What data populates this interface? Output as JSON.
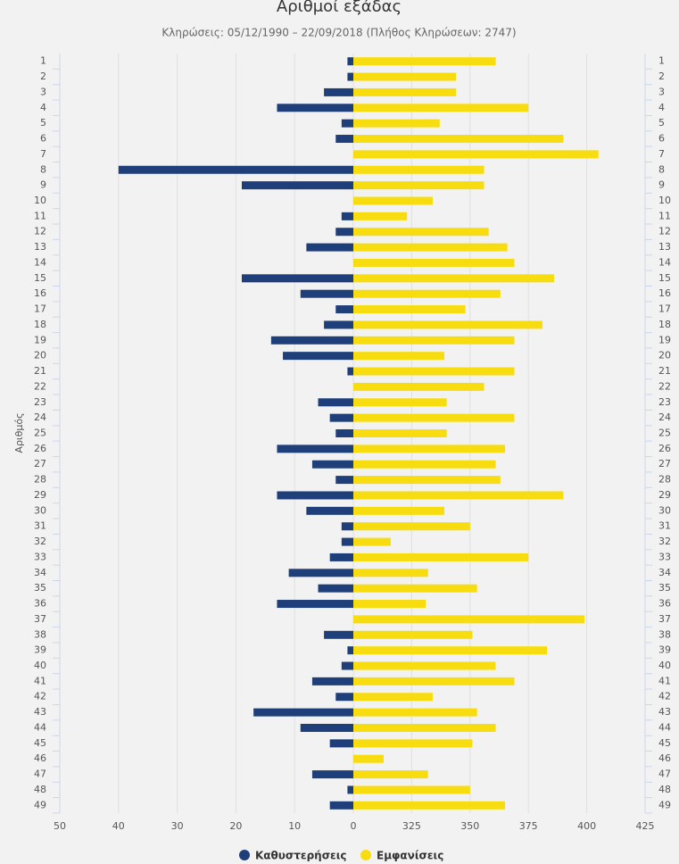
{
  "chart_data": {
    "type": "butterfly-bar",
    "title": "Αριθμοί εξάδας",
    "subtitle": "Κληρώσεις: 05/12/1990 – 22/09/2018 (Πλήθος Κληρώσεων: 2747)",
    "y_label": "Αριθμός",
    "categories": [
      "1",
      "2",
      "3",
      "4",
      "5",
      "6",
      "7",
      "8",
      "9",
      "10",
      "11",
      "12",
      "13",
      "14",
      "15",
      "16",
      "17",
      "18",
      "19",
      "20",
      "21",
      "22",
      "23",
      "24",
      "25",
      "26",
      "27",
      "28",
      "29",
      "30",
      "31",
      "32",
      "33",
      "34",
      "35",
      "36",
      "37",
      "38",
      "39",
      "40",
      "41",
      "42",
      "43",
      "44",
      "45",
      "46",
      "47",
      "48",
      "49"
    ],
    "grid": true,
    "series": [
      {
        "name": "Καθυστερήσεις",
        "color": "#1f3f7a",
        "side": "left",
        "xlim": [
          0,
          50
        ],
        "xticks": [
          0,
          10,
          20,
          30,
          40,
          50
        ],
        "values": [
          1,
          1,
          5,
          13,
          2,
          3,
          0,
          40,
          19,
          0,
          2,
          3,
          8,
          0,
          19,
          9,
          3,
          5,
          14,
          12,
          1,
          0,
          6,
          4,
          3,
          13,
          7,
          3,
          13,
          8,
          2,
          2,
          4,
          11,
          6,
          13,
          0,
          5,
          1,
          2,
          7,
          3,
          17,
          9,
          4,
          0,
          7,
          1,
          4
        ]
      },
      {
        "name": "Εμφανίσεις",
        "color": "#f7dc10",
        "side": "right",
        "xlim": [
          300,
          425
        ],
        "xticks": [
          325,
          350,
          375,
          400,
          425
        ],
        "values": [
          361,
          344,
          344,
          375,
          337,
          390,
          405,
          356,
          356,
          334,
          323,
          358,
          366,
          369,
          386,
          363,
          348,
          381,
          369,
          339,
          369,
          356,
          340,
          369,
          340,
          365,
          361,
          363,
          390,
          339,
          350,
          316,
          375,
          332,
          353,
          331,
          399,
          351,
          383,
          361,
          369,
          334,
          353,
          361,
          351,
          313,
          332,
          350,
          365
        ]
      }
    ]
  }
}
